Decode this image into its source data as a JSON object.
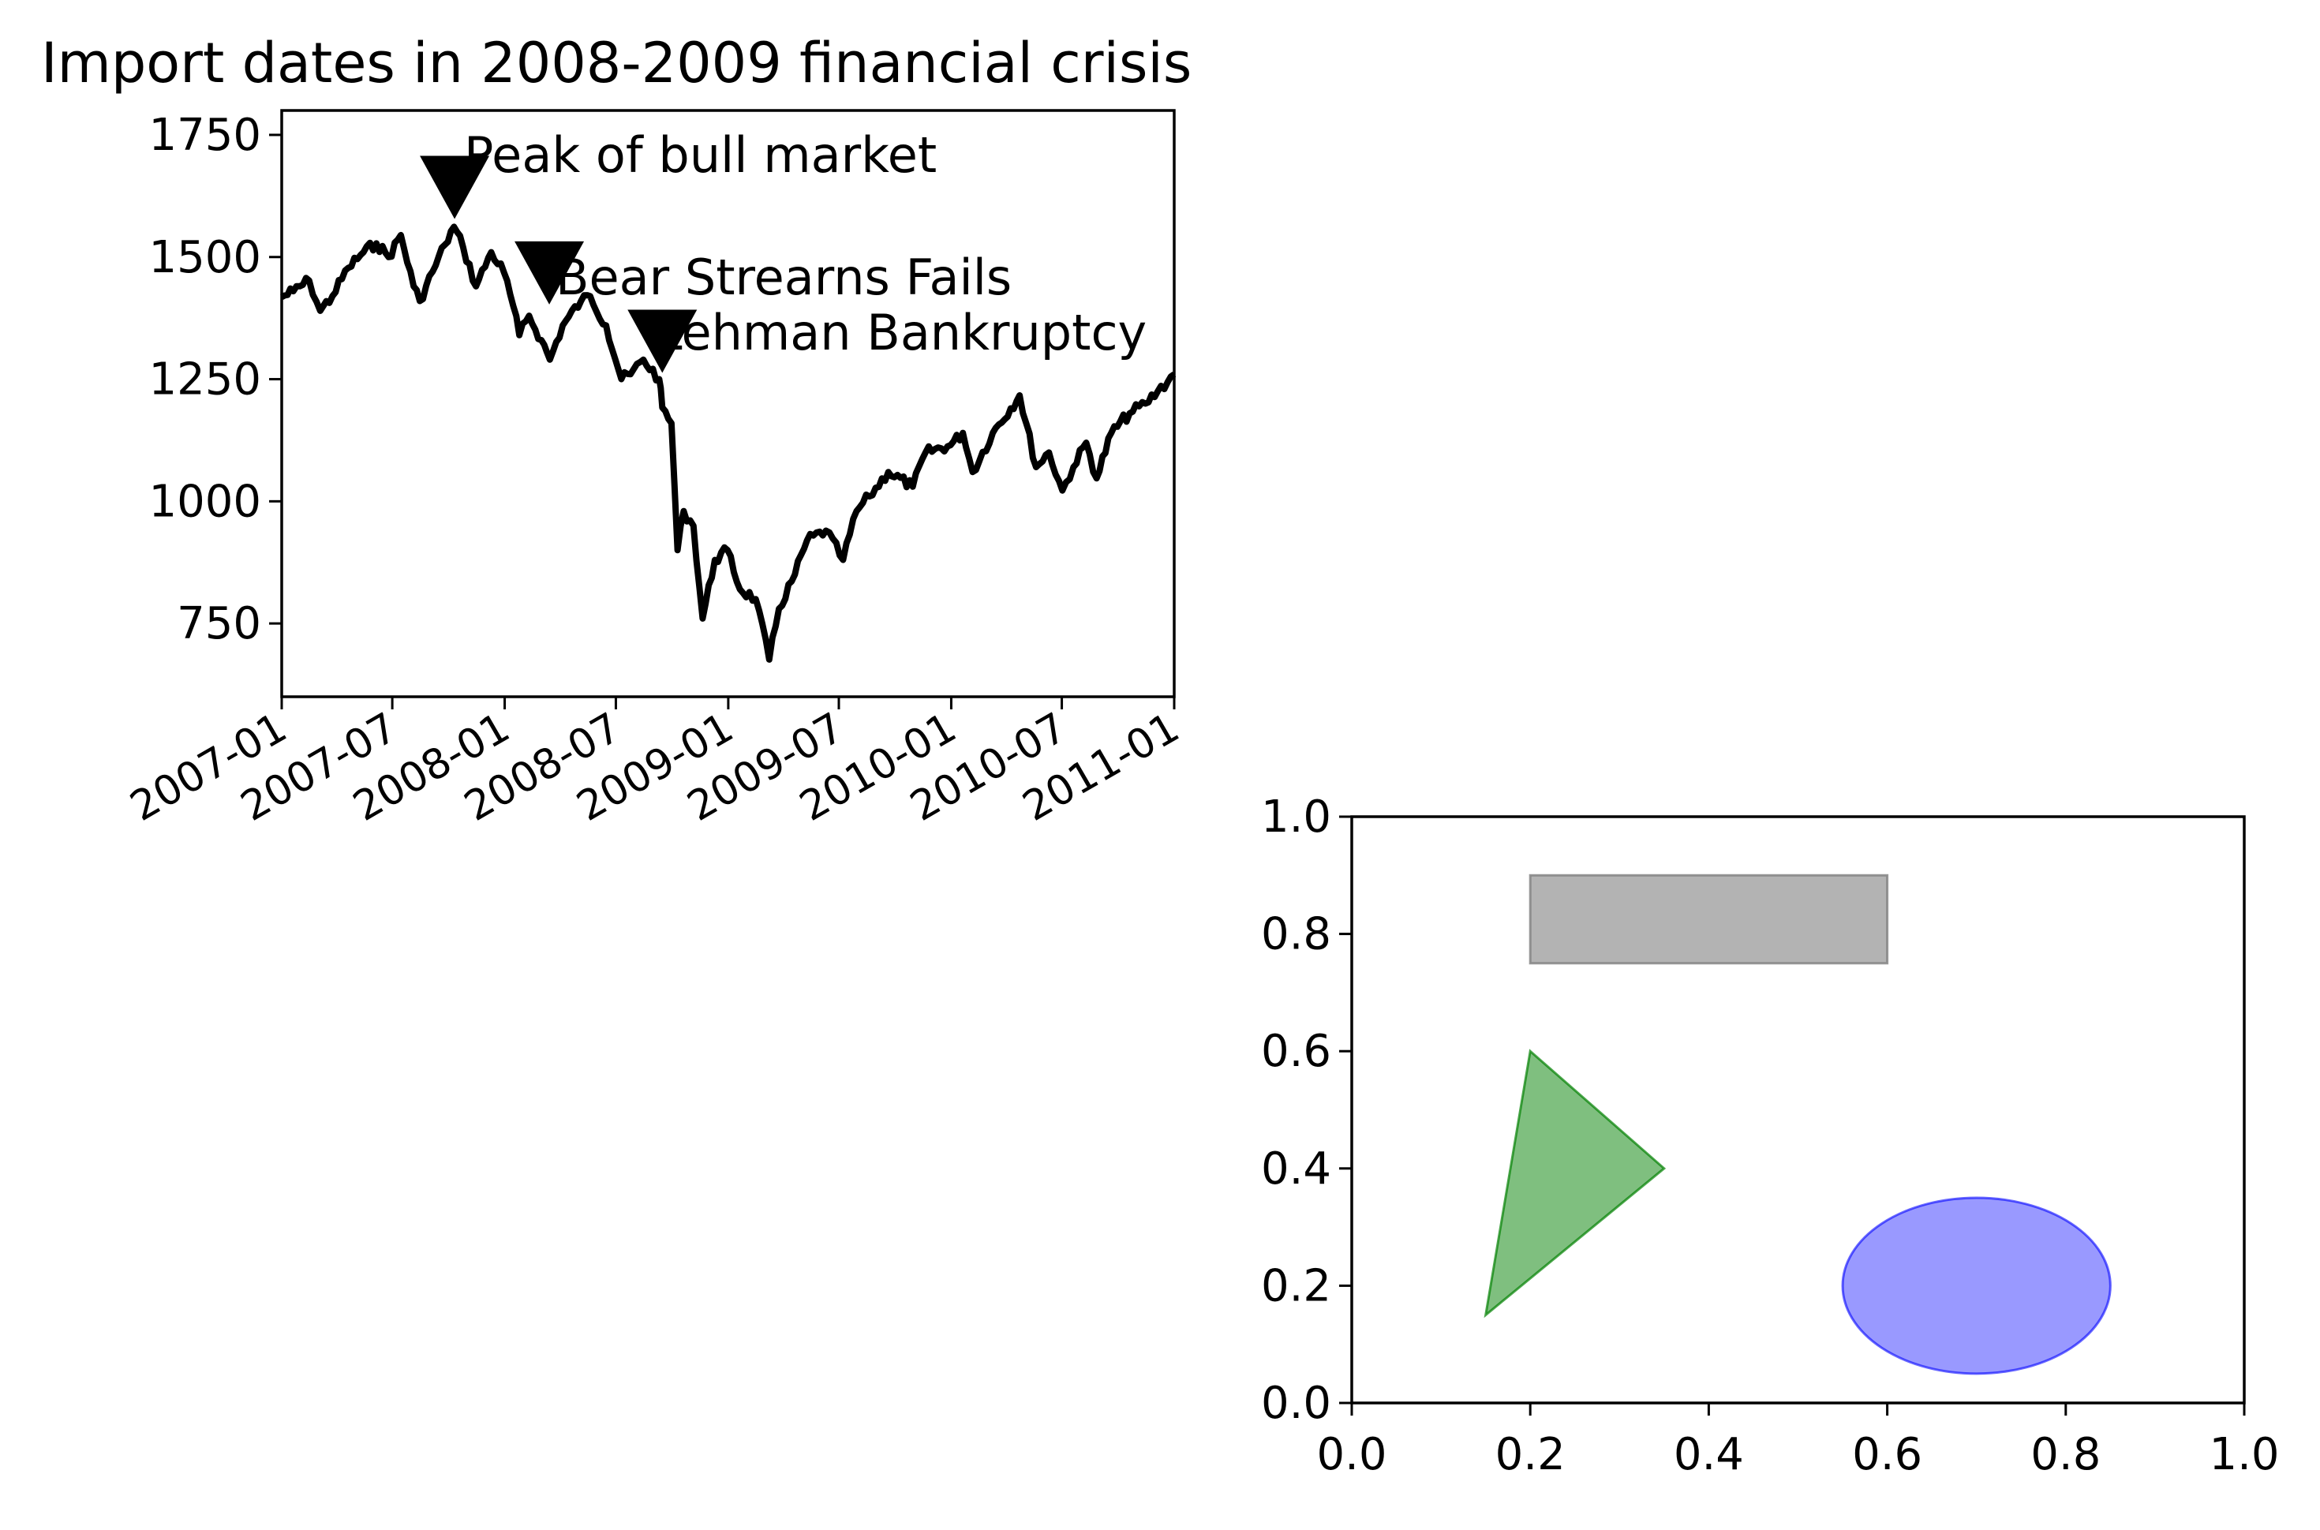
{
  "chart_data": [
    {
      "type": "line",
      "title": "Import dates in 2008-2009 financial crisis",
      "xlabel": "",
      "ylabel": "",
      "x_axis": "date",
      "xlim": [
        "2007-01-01",
        "2011-01-01"
      ],
      "ylim": [
        600,
        1800
      ],
      "x_ticks": [
        "2007-01",
        "2007-07",
        "2008-01",
        "2008-07",
        "2009-01",
        "2009-07",
        "2010-01",
        "2010-07",
        "2011-01"
      ],
      "y_ticks": [
        750,
        1000,
        1250,
        1500,
        1750
      ],
      "grid": false,
      "line_color": "#000000",
      "series": [
        {
          "points": [
            [
              "2007-01-01",
              1418
            ],
            [
              "2007-01-20",
              1430
            ],
            [
              "2007-02-15",
              1452
            ],
            [
              "2007-03-05",
              1390
            ],
            [
              "2007-03-25",
              1420
            ],
            [
              "2007-04-20",
              1478
            ],
            [
              "2007-05-15",
              1510
            ],
            [
              "2007-06-05",
              1528
            ],
            [
              "2007-06-25",
              1500
            ],
            [
              "2007-07-15",
              1545
            ],
            [
              "2007-08-05",
              1440
            ],
            [
              "2007-08-15",
              1410
            ],
            [
              "2007-09-05",
              1470
            ],
            [
              "2007-09-25",
              1525
            ],
            [
              "2007-10-10",
              1562
            ],
            [
              "2007-10-25",
              1520
            ],
            [
              "2007-11-15",
              1440
            ],
            [
              "2007-12-10",
              1510
            ],
            [
              "2007-12-31",
              1468
            ],
            [
              "2008-01-15",
              1400
            ],
            [
              "2008-01-25",
              1340
            ],
            [
              "2008-02-10",
              1380
            ],
            [
              "2008-03-01",
              1330
            ],
            [
              "2008-03-15",
              1290
            ],
            [
              "2008-04-05",
              1360
            ],
            [
              "2008-05-05",
              1410
            ],
            [
              "2008-05-20",
              1420
            ],
            [
              "2008-06-15",
              1360
            ],
            [
              "2008-07-10",
              1250
            ],
            [
              "2008-07-25",
              1260
            ],
            [
              "2008-08-15",
              1290
            ],
            [
              "2008-09-10",
              1250
            ],
            [
              "2008-09-15",
              1192
            ],
            [
              "2008-09-30",
              1160
            ],
            [
              "2008-10-10",
              900
            ],
            [
              "2008-10-20",
              980
            ],
            [
              "2008-11-05",
              950
            ],
            [
              "2008-11-20",
              760
            ],
            [
              "2008-12-10",
              880
            ],
            [
              "2008-12-31",
              900
            ],
            [
              "2009-01-20",
              820
            ],
            [
              "2009-02-15",
              800
            ],
            [
              "2009-03-09",
              676
            ],
            [
              "2009-03-25",
              780
            ],
            [
              "2009-04-20",
              850
            ],
            [
              "2009-05-10",
              920
            ],
            [
              "2009-06-10",
              940
            ],
            [
              "2009-07-08",
              880
            ],
            [
              "2009-07-30",
              980
            ],
            [
              "2009-08-20",
              1010
            ],
            [
              "2009-09-20",
              1060
            ],
            [
              "2009-10-30",
              1030
            ],
            [
              "2009-11-20",
              1100
            ],
            [
              "2009-12-31",
              1115
            ],
            [
              "2010-01-20",
              1140
            ],
            [
              "2010-02-05",
              1060
            ],
            [
              "2010-03-10",
              1140
            ],
            [
              "2010-04-23",
              1217
            ],
            [
              "2010-05-20",
              1070
            ],
            [
              "2010-06-10",
              1100
            ],
            [
              "2010-07-02",
              1022
            ],
            [
              "2010-07-20",
              1070
            ],
            [
              "2010-08-10",
              1120
            ],
            [
              "2010-08-27",
              1047
            ],
            [
              "2010-09-20",
              1140
            ],
            [
              "2010-10-20",
              1180
            ],
            [
              "2010-11-15",
              1200
            ],
            [
              "2010-12-05",
              1225
            ],
            [
              "2011-01-01",
              1260
            ]
          ]
        }
      ],
      "annotations": [
        {
          "text": "Peak of bull market",
          "date": "2007-10-11",
          "value": 1565
        },
        {
          "text": "Bear Strearns Fails",
          "date": "2008-03-14",
          "value": 1390
        },
        {
          "text": "Lehman Bankruptcy",
          "date": "2008-09-15",
          "value": 1250
        }
      ]
    },
    {
      "type": "shapes",
      "xlim": [
        0,
        1
      ],
      "ylim": [
        0,
        1
      ],
      "x_ticks": [
        "0.0",
        "0.2",
        "0.4",
        "0.6",
        "0.8",
        "1.0"
      ],
      "y_ticks": [
        "0.0",
        "0.2",
        "0.4",
        "0.6",
        "0.8",
        "1.0"
      ],
      "grid": false,
      "shapes": [
        {
          "kind": "rectangle",
          "x": 0.2,
          "y": 0.75,
          "width": 0.4,
          "height": 0.15,
          "color": "#808080",
          "alpha": 0.6
        },
        {
          "kind": "polygon",
          "points": [
            [
              0.2,
              0.6
            ],
            [
              0.35,
              0.4
            ],
            [
              0.15,
              0.15
            ]
          ],
          "color": "#008000",
          "alpha": 0.5
        },
        {
          "kind": "ellipse",
          "cx": 0.7,
          "cy": 0.2,
          "width": 0.3,
          "height": 0.3,
          "color": "#0000ff",
          "alpha": 0.4
        }
      ]
    }
  ]
}
